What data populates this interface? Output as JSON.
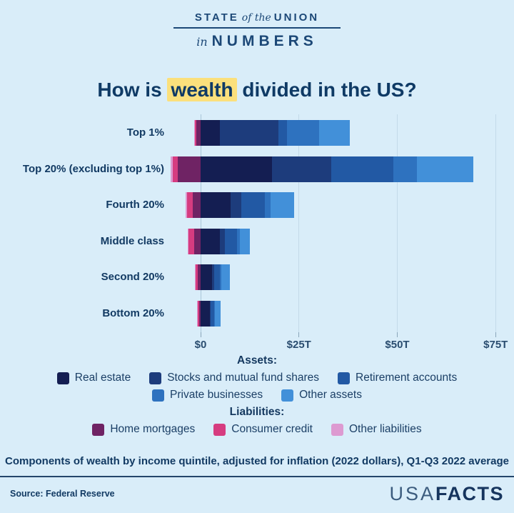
{
  "header": {
    "state": "STATE",
    "of_the": "of the",
    "union": "UNION",
    "in": "in",
    "numbers": "NUMBERS"
  },
  "title": {
    "pre": "How is ",
    "highlight": "wealth",
    "post": " divided in the US?",
    "highlight_color": "#fbe07c"
  },
  "chart_data": {
    "type": "bar",
    "orientation": "horizontal",
    "stacked": true,
    "title": "How is wealth divided in the US?",
    "unit": "trillions of 2022 USD",
    "categories": [
      "Top 1%",
      "Top 20% (excluding top 1%)",
      "Fourth 20%",
      "Middle class",
      "Second 20%",
      "Bottom 20%"
    ],
    "series": [
      {
        "key": "real_estate",
        "name": "Real estate",
        "side": "asset",
        "color": "#141e52",
        "values": [
          4.9,
          18.1,
          7.7,
          4.9,
          2.9,
          2.3
        ]
      },
      {
        "key": "stocks_mutual_funds",
        "name": "Stocks and mutual fund shares",
        "side": "asset",
        "color": "#1d3c7c",
        "values": [
          14.9,
          15.1,
          2.7,
          1.2,
          0.5,
          0.2
        ]
      },
      {
        "key": "retirement_accounts",
        "name": "Retirement accounts",
        "side": "asset",
        "color": "#2259a4",
        "values": [
          2.2,
          15.8,
          5.9,
          3.2,
          1.5,
          0.9
        ]
      },
      {
        "key": "private_businesses",
        "name": "Private businesses",
        "side": "asset",
        "color": "#2e72bf",
        "values": [
          8.2,
          6.0,
          1.5,
          0.6,
          0.3,
          0.2
        ]
      },
      {
        "key": "other_assets",
        "name": "Other assets",
        "side": "asset",
        "color": "#4290d9",
        "values": [
          7.8,
          14.3,
          6.0,
          2.6,
          2.2,
          1.5
        ]
      },
      {
        "key": "home_mortgages",
        "name": "Home mortgages",
        "side": "liability",
        "color": "#6f2364",
        "values": [
          -1.1,
          -5.8,
          -2.0,
          -1.6,
          -0.7,
          -0.4
        ]
      },
      {
        "key": "consumer_credit",
        "name": "Consumer credit",
        "side": "liability",
        "color": "#d63c80",
        "values": [
          -0.3,
          -1.3,
          -1.5,
          -1.4,
          -0.7,
          -0.4
        ]
      },
      {
        "key": "other_liabilities",
        "name": "Other liabilities",
        "side": "liability",
        "color": "#dd9ad1",
        "values": [
          -0.3,
          -0.5,
          -0.3,
          -0.2,
          -0.1,
          -0.1
        ]
      }
    ],
    "x_axis": {
      "ticks": [
        0,
        25,
        50,
        75
      ],
      "tick_labels": [
        "$0",
        "$25T",
        "$50T",
        "$75T"
      ],
      "range": [
        -9,
        79
      ],
      "gridlines": true
    },
    "legend_position": "bottom"
  },
  "legend": {
    "assets": {
      "heading": "Assets:",
      "rows": [
        [
          {
            "label": "Real estate",
            "color": "#141e52"
          },
          {
            "label": "Stocks and mutual fund shares",
            "color": "#1d3c7c"
          },
          {
            "label": "Retirement accounts",
            "color": "#2259a4"
          }
        ],
        [
          {
            "label": "Private businesses",
            "color": "#2e72bf"
          },
          {
            "label": "Other assets",
            "color": "#4290d9"
          }
        ]
      ]
    },
    "liabilities": {
      "heading": "Liabilities:",
      "rows": [
        [
          {
            "label": "Home mortgages",
            "color": "#6f2364"
          },
          {
            "label": "Consumer credit",
            "color": "#d63c80"
          },
          {
            "label": "Other liabilities",
            "color": "#dd9ad1"
          }
        ]
      ]
    }
  },
  "caption": "Components of wealth by income quintile, adjusted for inflation (2022 dollars), Q1-Q3 2022 average",
  "footer": {
    "source": "Source: Federal Reserve",
    "brand_usa": "USA",
    "brand_facts": "FACTS"
  },
  "colors": {
    "background": "#d9edf9",
    "text_navy": "#123a63",
    "gridline": "#c3dae9"
  }
}
